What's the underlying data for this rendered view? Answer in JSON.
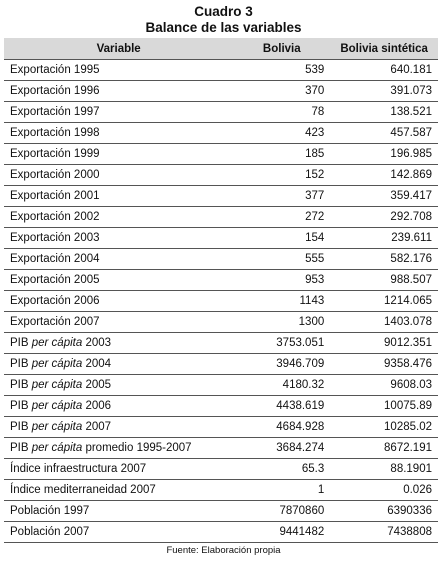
{
  "title": "Cuadro 3",
  "subtitle": "Balance de las variables",
  "headers": [
    "Variable",
    "Bolivia",
    "Bolivia sintética"
  ],
  "rows": [
    {
      "label": "Exportación 1995",
      "bolivia": "539",
      "synthetic": "640.181"
    },
    {
      "label": "Exportación 1996",
      "bolivia": "370",
      "synthetic": "391.073"
    },
    {
      "label": "Exportación 1997",
      "bolivia": "78",
      "synthetic": "138.521"
    },
    {
      "label": "Exportación 1998",
      "bolivia": "423",
      "synthetic": "457.587"
    },
    {
      "label": "Exportación 1999",
      "bolivia": "185",
      "synthetic": "196.985"
    },
    {
      "label": "Exportación 2000",
      "bolivia": "152",
      "synthetic": "142.869"
    },
    {
      "label": "Exportación 2001",
      "bolivia": "377",
      "synthetic": "359.417"
    },
    {
      "label": "Exportación 2002",
      "bolivia": "272",
      "synthetic": "292.708"
    },
    {
      "label": "Exportación 2003",
      "bolivia": "154",
      "synthetic": "239.611"
    },
    {
      "label": "Exportación 2004",
      "bolivia": "555",
      "synthetic": "582.176"
    },
    {
      "label": "Exportación 2005",
      "bolivia": "953",
      "synthetic": "988.507"
    },
    {
      "label": "Exportación 2006",
      "bolivia": "1143",
      "synthetic": "1214.065"
    },
    {
      "label": "Exportación 2007",
      "bolivia": "1300",
      "synthetic": "1403.078"
    },
    {
      "label_prefix": "PIB ",
      "label_italic": "per cápita",
      "label_suffix": " 2003",
      "bolivia": "3753.051",
      "synthetic": "9012.351"
    },
    {
      "label_prefix": "PIB ",
      "label_italic": "per cápita",
      "label_suffix": " 2004",
      "bolivia": "3946.709",
      "synthetic": "9358.476"
    },
    {
      "label_prefix": "PIB ",
      "label_italic": "per cápita",
      "label_suffix": " 2005",
      "bolivia": "4180.32",
      "synthetic": "9608.03"
    },
    {
      "label_prefix": "PIB ",
      "label_italic": "per cápita",
      "label_suffix": " 2006",
      "bolivia": "4438.619",
      "synthetic": "10075.89"
    },
    {
      "label_prefix": "PIB ",
      "label_italic": "per cápita",
      "label_suffix": " 2007",
      "bolivia": "4684.928",
      "synthetic": "10285.02"
    },
    {
      "label_prefix": "PIB ",
      "label_italic": "per cápita",
      "label_suffix": " promedio 1995-2007",
      "bolivia": "3684.274",
      "synthetic": "8672.191"
    },
    {
      "label": "Índice infraestructura 2007",
      "bolivia": "65.3",
      "synthetic": "88.1901"
    },
    {
      "label": "Índice mediterraneidad 2007",
      "bolivia": "1",
      "synthetic": "0.026"
    },
    {
      "label": "Población 1997",
      "bolivia": "7870860",
      "synthetic": "6390336"
    },
    {
      "label": "Población 2007",
      "bolivia": "9441482",
      "synthetic": "7438808"
    }
  ],
  "source": "Fuente: Elaboración propia"
}
